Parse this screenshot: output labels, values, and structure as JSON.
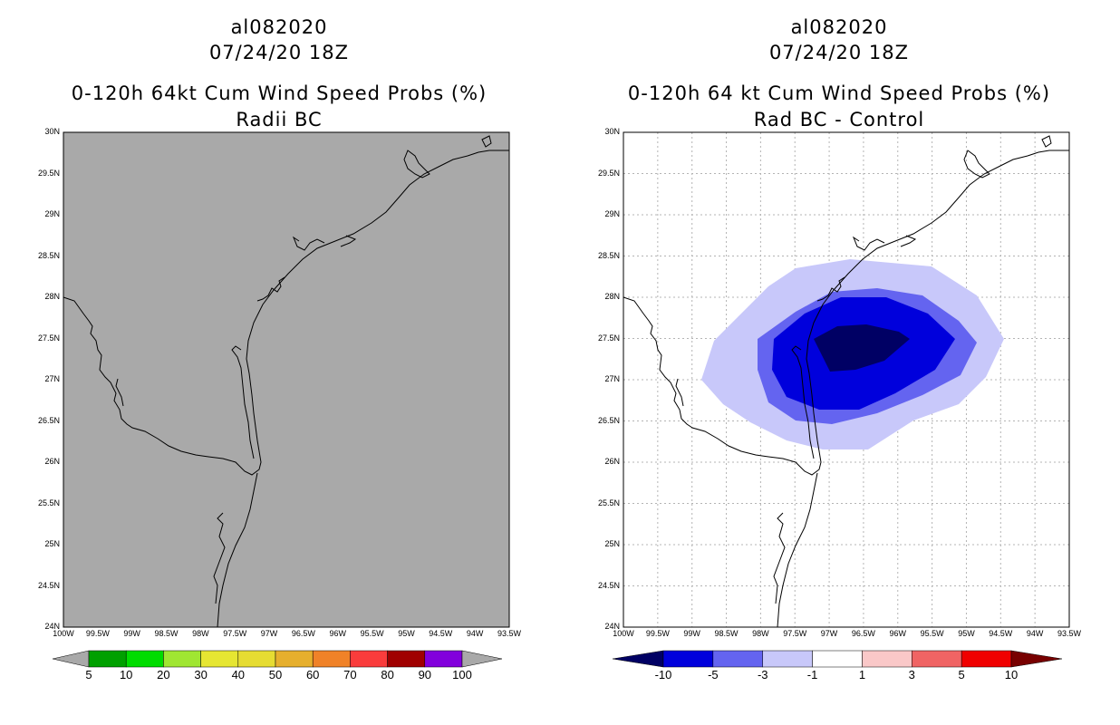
{
  "left_panel": {
    "storm_id": "al082020",
    "datetime": "07/24/20 18Z",
    "product": "0-120h 64kt Cum Wind Speed Probs (%)",
    "subtitle": "Radii BC",
    "colorbar_labels": [
      "5",
      "10",
      "20",
      "30",
      "40",
      "50",
      "60",
      "70",
      "80",
      "90",
      "100"
    ],
    "colorbar_colors": [
      "#00a000",
      "#00dc00",
      "#a0e632",
      "#e6e632",
      "#e6dc32",
      "#e6af2d",
      "#f08228",
      "#fa3c3c",
      "#a00000",
      "#8200dc"
    ]
  },
  "right_panel": {
    "storm_id": "al082020",
    "datetime": "07/24/20 18Z",
    "product": "0-120h 64 kt Cum Wind Speed Probs (%)",
    "subtitle": "Rad BC - Control",
    "colorbar_labels": [
      "-10",
      "-5",
      "-3",
      "-1",
      "1",
      "3",
      "5",
      "10"
    ],
    "colorbar_colors": [
      "#0000dc",
      "#6464f0",
      "#c8c8fa",
      "#ffffff",
      "#fac8c8",
      "#f06464",
      "#f00000"
    ],
    "colorbar_end_colors": {
      "low": "#000064",
      "high": "#780000"
    }
  },
  "axes": {
    "lat_labels": [
      "30N",
      "29.5N",
      "29N",
      "28.5N",
      "28N",
      "27.5N",
      "27N",
      "26.5N",
      "26N",
      "25.5N",
      "25N",
      "24.5N",
      "24N"
    ],
    "lon_labels": [
      "100W",
      "99.5W",
      "99W",
      "98.5W",
      "98W",
      "97.5W",
      "97W",
      "96.5W",
      "96W",
      "95.5W",
      "95W",
      "94.5W",
      "94W",
      "93.5W"
    ]
  },
  "map_colors": {
    "left_background": "#a9a9a9",
    "right_background": "#ffffff",
    "coastline": "#000000",
    "band_light": "#c8c8fa",
    "band_mid": "#6464f0",
    "band_strong": "#0000dc",
    "band_darkest": "#000064"
  }
}
